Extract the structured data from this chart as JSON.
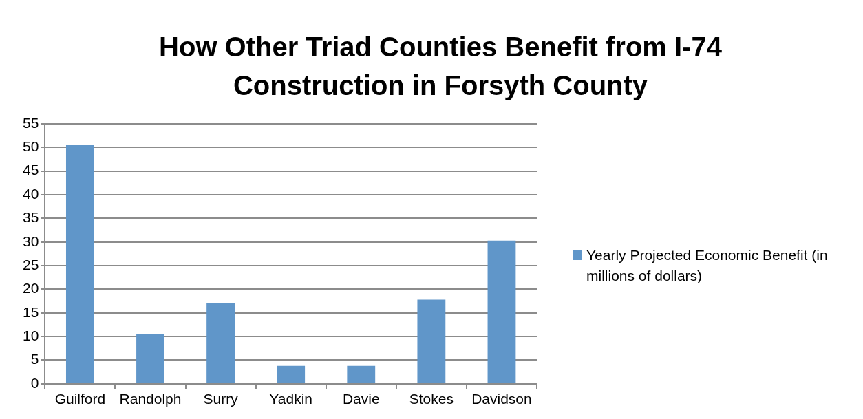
{
  "chart_data": {
    "type": "bar",
    "title": "How Other Triad Counties Benefit from I-74 Construction in Forsyth County",
    "categories": [
      "Guilford",
      "Randolph",
      "Surry",
      "Yadkin",
      "Davie",
      "Stokes",
      "Davidson"
    ],
    "series": [
      {
        "name": "Yearly Projected Economic Benefit (in millions of dollars)",
        "color": "#6096c9",
        "values": [
          50.5,
          10.5,
          17,
          3.8,
          3.8,
          17.8,
          30.3
        ]
      }
    ],
    "ylim": [
      0,
      55
    ],
    "yticks": [
      0,
      5,
      10,
      15,
      20,
      25,
      30,
      35,
      40,
      45,
      50,
      55
    ],
    "grid": "y",
    "legend": "right"
  }
}
